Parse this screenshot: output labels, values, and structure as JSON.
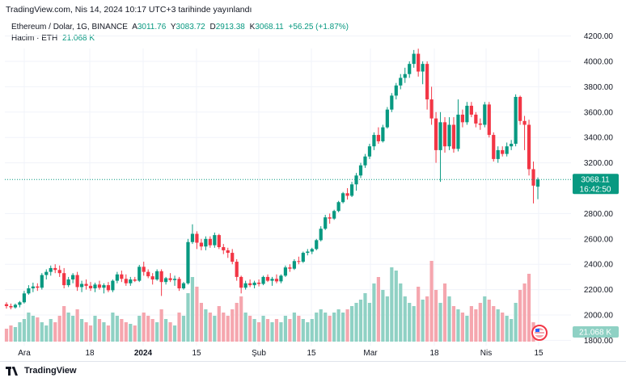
{
  "header": {
    "published": "TradingView.com, Nis 14, 2024 10:17 UTC+3 tarihinde yayınlandı"
  },
  "legend": {
    "symbol": "Ethereum / Dolar, 1G, BINANCE",
    "open_label": "A",
    "open": "3011.76",
    "high_label": "Y",
    "high": "3083.72",
    "low_label": "D",
    "low": "2913.38",
    "close_label": "K",
    "close": "3068.11",
    "change": "+56.25 (+1.87%)",
    "volume_label": "Hacim · ETH",
    "volume_value": "21.068 K"
  },
  "price_tag": {
    "price": "3068.11",
    "countdown": "16:42:50"
  },
  "volume_tag": "21.068 K",
  "footer": {
    "brand": "TradingView"
  },
  "colors": {
    "up": "#089981",
    "down": "#f23645",
    "vol_up": "#8fd1c4",
    "vol_down": "#f5a6ae",
    "grid": "#f0f3fa",
    "price_line": "#089981"
  },
  "chart_data": {
    "type": "candlestick",
    "title": "Ethereum / Dolar, 1G, BINANCE",
    "x_ticks": [
      "Ara",
      "18",
      "2024",
      "15",
      "Şub",
      "15",
      "Mar",
      "18",
      "Nis",
      "15"
    ],
    "y_ticks": [
      "4200.00",
      "4000.00",
      "3800.00",
      "3600.00",
      "3400.00",
      "3200.00",
      "2800.00",
      "2600.00",
      "2400.00",
      "2200.00",
      "2000.00",
      "1800.00"
    ],
    "ylim": [
      1800,
      4250
    ],
    "last_price": 3068.11,
    "grid": true,
    "series": [
      {
        "name": "Ethereum / Dolar",
        "ohlc": [
          [
            2085,
            2100,
            2050,
            2070
          ],
          [
            2070,
            2090,
            2045,
            2060
          ],
          [
            2060,
            2090,
            2050,
            2080
          ],
          [
            2080,
            2110,
            2060,
            2100
          ],
          [
            2100,
            2190,
            2090,
            2170
          ],
          [
            2170,
            2235,
            2160,
            2210
          ],
          [
            2210,
            2255,
            2180,
            2225
          ],
          [
            2225,
            2250,
            2190,
            2215
          ],
          [
            2215,
            2330,
            2200,
            2315
          ],
          [
            2315,
            2360,
            2280,
            2340
          ],
          [
            2340,
            2390,
            2310,
            2370
          ],
          [
            2370,
            2400,
            2330,
            2355
          ],
          [
            2355,
            2390,
            2300,
            2330
          ],
          [
            2330,
            2370,
            2210,
            2235
          ],
          [
            2235,
            2300,
            2220,
            2280
          ],
          [
            2280,
            2330,
            2250,
            2315
          ],
          [
            2315,
            2340,
            2190,
            2220
          ],
          [
            2220,
            2270,
            2180,
            2245
          ],
          [
            2245,
            2280,
            2200,
            2230
          ],
          [
            2230,
            2260,
            2190,
            2210
          ],
          [
            2210,
            2255,
            2180,
            2240
          ],
          [
            2240,
            2270,
            2200,
            2215
          ],
          [
            2215,
            2250,
            2170,
            2235
          ],
          [
            2235,
            2260,
            2180,
            2195
          ],
          [
            2195,
            2280,
            2180,
            2270
          ],
          [
            2270,
            2340,
            2250,
            2320
          ],
          [
            2320,
            2350,
            2260,
            2285
          ],
          [
            2285,
            2320,
            2230,
            2250
          ],
          [
            2250,
            2300,
            2230,
            2280
          ],
          [
            2280,
            2300,
            2260,
            2270
          ],
          [
            2270,
            2395,
            2260,
            2380
          ],
          [
            2380,
            2420,
            2310,
            2340
          ],
          [
            2340,
            2360,
            2290,
            2305
          ],
          [
            2305,
            2330,
            2240,
            2280
          ],
          [
            2280,
            2360,
            2270,
            2345
          ],
          [
            2345,
            2360,
            2150,
            2260
          ],
          [
            2260,
            2300,
            2240,
            2290
          ],
          [
            2290,
            2330,
            2260,
            2275
          ],
          [
            2275,
            2310,
            2230,
            2285
          ],
          [
            2285,
            2300,
            2190,
            2210
          ],
          [
            2210,
            2260,
            2200,
            2250
          ],
          [
            2250,
            2600,
            2240,
            2575
          ],
          [
            2575,
            2715,
            2560,
            2640
          ],
          [
            2640,
            2660,
            2520,
            2570
          ],
          [
            2570,
            2600,
            2510,
            2540
          ],
          [
            2540,
            2620,
            2510,
            2600
          ],
          [
            2600,
            2620,
            2530,
            2550
          ],
          [
            2550,
            2650,
            2530,
            2630
          ],
          [
            2630,
            2640,
            2520,
            2535
          ],
          [
            2535,
            2560,
            2480,
            2510
          ],
          [
            2510,
            2530,
            2450,
            2490
          ],
          [
            2490,
            2520,
            2400,
            2420
          ],
          [
            2420,
            2440,
            2270,
            2300
          ],
          [
            2300,
            2310,
            2170,
            2215
          ],
          [
            2215,
            2270,
            2200,
            2250
          ],
          [
            2250,
            2280,
            2220,
            2235
          ],
          [
            2235,
            2270,
            2210,
            2255
          ],
          [
            2255,
            2280,
            2225,
            2245
          ],
          [
            2245,
            2310,
            2235,
            2300
          ],
          [
            2300,
            2320,
            2260,
            2270
          ],
          [
            2270,
            2300,
            2230,
            2285
          ],
          [
            2285,
            2320,
            2250,
            2265
          ],
          [
            2265,
            2320,
            2250,
            2310
          ],
          [
            2310,
            2390,
            2300,
            2375
          ],
          [
            2375,
            2400,
            2340,
            2365
          ],
          [
            2365,
            2440,
            2355,
            2425
          ],
          [
            2425,
            2460,
            2400,
            2420
          ],
          [
            2420,
            2500,
            2410,
            2490
          ],
          [
            2490,
            2520,
            2470,
            2500
          ],
          [
            2500,
            2530,
            2480,
            2520
          ],
          [
            2520,
            2600,
            2510,
            2590
          ],
          [
            2590,
            2700,
            2580,
            2680
          ],
          [
            2680,
            2790,
            2670,
            2770
          ],
          [
            2770,
            2800,
            2720,
            2760
          ],
          [
            2760,
            2830,
            2750,
            2820
          ],
          [
            2820,
            2900,
            2810,
            2890
          ],
          [
            2890,
            2970,
            2880,
            2960
          ],
          [
            2960,
            3000,
            2910,
            2940
          ],
          [
            2940,
            3050,
            2930,
            3030
          ],
          [
            3030,
            3120,
            2980,
            3100
          ],
          [
            3100,
            3200,
            3080,
            3180
          ],
          [
            3180,
            3270,
            3160,
            3250
          ],
          [
            3250,
            3350,
            3230,
            3330
          ],
          [
            3330,
            3440,
            3300,
            3420
          ],
          [
            3420,
            3480,
            3350,
            3370
          ],
          [
            3370,
            3500,
            3360,
            3480
          ],
          [
            3480,
            3640,
            3470,
            3620
          ],
          [
            3620,
            3750,
            3600,
            3730
          ],
          [
            3730,
            3830,
            3700,
            3810
          ],
          [
            3810,
            3900,
            3780,
            3870
          ],
          [
            3870,
            3950,
            3830,
            3900
          ],
          [
            3900,
            4000,
            3870,
            3980
          ],
          [
            3980,
            4090,
            3950,
            4060
          ],
          [
            4060,
            4100,
            3880,
            3920
          ],
          [
            3920,
            4000,
            3820,
            3980
          ],
          [
            3980,
            4000,
            3620,
            3700
          ],
          [
            3700,
            3800,
            3500,
            3550
          ],
          [
            3550,
            3600,
            3200,
            3300
          ],
          [
            3300,
            3600,
            3050,
            3520
          ],
          [
            3520,
            3560,
            3280,
            3330
          ],
          [
            3330,
            3560,
            3300,
            3500
          ],
          [
            3500,
            3560,
            3280,
            3310
          ],
          [
            3310,
            3700,
            3290,
            3580
          ],
          [
            3580,
            3620,
            3480,
            3520
          ],
          [
            3520,
            3680,
            3500,
            3650
          ],
          [
            3650,
            3680,
            3560,
            3580
          ],
          [
            3580,
            3600,
            3480,
            3510
          ],
          [
            3510,
            3550,
            3460,
            3500
          ],
          [
            3500,
            3680,
            3480,
            3660
          ],
          [
            3660,
            3680,
            3400,
            3420
          ],
          [
            3420,
            3440,
            3210,
            3230
          ],
          [
            3230,
            3330,
            3200,
            3300
          ],
          [
            3300,
            3330,
            3250,
            3270
          ],
          [
            3270,
            3360,
            3250,
            3330
          ],
          [
            3330,
            3380,
            3300,
            3350
          ],
          [
            3350,
            3740,
            3330,
            3720
          ],
          [
            3720,
            3730,
            3500,
            3530
          ],
          [
            3530,
            3570,
            3300,
            3500
          ],
          [
            3500,
            3540,
            3100,
            3150
          ],
          [
            3150,
            3210,
            2880,
            3020
          ],
          [
            3012,
            3084,
            2913,
            3068
          ]
        ],
        "volume": [
          4,
          5,
          4.5,
          6,
          7,
          9,
          8,
          7.5,
          6,
          5,
          7,
          6,
          8,
          11,
          9,
          8,
          10,
          7,
          6,
          5,
          8,
          7,
          6,
          5,
          9,
          8,
          7,
          6,
          5.5,
          5,
          8,
          9,
          8,
          7,
          6,
          10,
          7,
          6,
          5,
          9,
          8,
          15,
          20,
          17,
          12,
          10,
          9,
          8,
          11,
          9,
          8,
          10,
          12,
          14,
          9,
          8,
          7,
          6,
          8,
          7,
          6,
          7,
          6,
          8,
          7,
          9,
          8,
          7,
          6,
          7,
          9,
          10,
          9,
          8,
          9,
          10,
          9,
          10,
          11,
          12,
          13,
          15,
          12,
          18,
          20,
          16,
          14,
          23,
          22,
          18,
          14,
          12,
          11,
          17,
          13,
          14,
          25,
          16,
          12,
          18,
          14,
          11,
          10,
          9,
          8,
          11,
          10,
          12,
          14,
          13,
          11,
          10,
          9,
          8,
          7,
          12,
          16,
          18,
          21,
          6
        ]
      }
    ]
  }
}
